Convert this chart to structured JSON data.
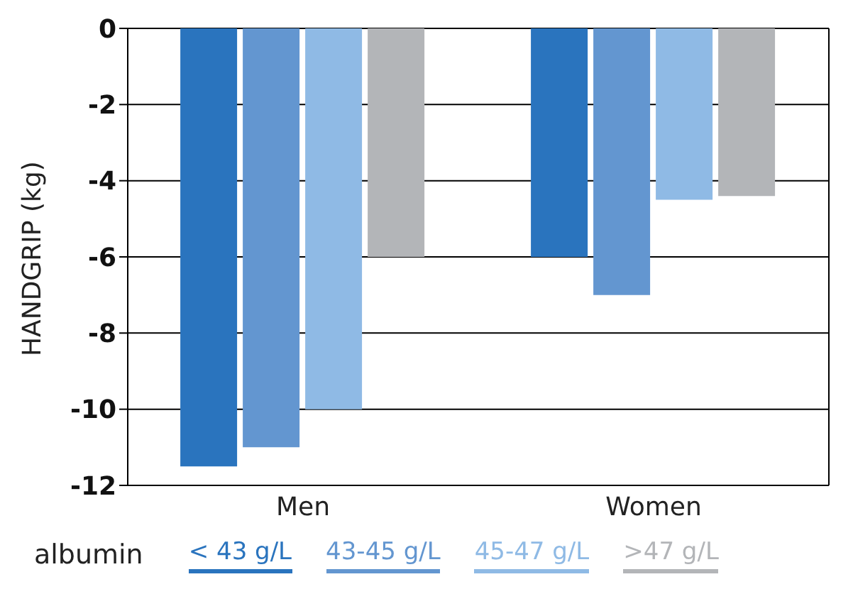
{
  "chart_data": {
    "type": "bar",
    "ylabel": "HANDGRIP (kg)",
    "legend_title": "albumin",
    "categories": [
      "Men",
      "Women"
    ],
    "series": [
      {
        "name": "< 43 g/L",
        "color": "#2a74be",
        "values": [
          -11.5,
          -6
        ]
      },
      {
        "name": "43-45 g/L",
        "color": "#6396d0",
        "values": [
          -11,
          -7
        ]
      },
      {
        "name": "45-47 g/L",
        "color": "#8fbae5",
        "values": [
          -10,
          -4.5
        ]
      },
      {
        "name": ">47 g/L",
        "color": "#b3b5b8",
        "values": [
          -6,
          -4.4
        ]
      }
    ],
    "ylim": [
      -12,
      0
    ],
    "yticks": [
      -12,
      -10,
      -8,
      -6,
      -4,
      -2,
      0
    ],
    "grid": "y",
    "legend": "bottom"
  }
}
